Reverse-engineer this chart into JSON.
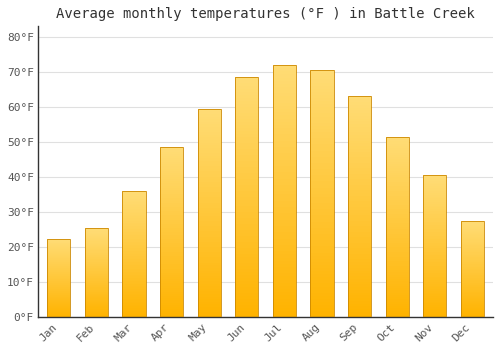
{
  "title": "Average monthly temperatures (°F ) in Battle Creek",
  "months": [
    "Jan",
    "Feb",
    "Mar",
    "Apr",
    "May",
    "Jun",
    "Jul",
    "Aug",
    "Sep",
    "Oct",
    "Nov",
    "Dec"
  ],
  "values": [
    22.5,
    25.5,
    36.0,
    48.5,
    59.5,
    68.5,
    72.0,
    70.5,
    63.0,
    51.5,
    40.5,
    27.5
  ],
  "ylim": [
    0,
    83
  ],
  "yticks": [
    0,
    10,
    20,
    30,
    40,
    50,
    60,
    70,
    80
  ],
  "ytick_labels": [
    "0°F",
    "10°F",
    "20°F",
    "30°F",
    "40°F",
    "50°F",
    "60°F",
    "70°F",
    "80°F"
  ],
  "bar_color_bottom": "#FFB300",
  "bar_color_top": "#FFD966",
  "background_color": "#FFFFFF",
  "plot_bg_color": "#FFFFFF",
  "grid_color": "#E0E0E0",
  "spine_color": "#333333",
  "title_fontsize": 10,
  "tick_fontsize": 8,
  "font_family": "monospace",
  "title_color": "#333333",
  "tick_color": "#555555"
}
